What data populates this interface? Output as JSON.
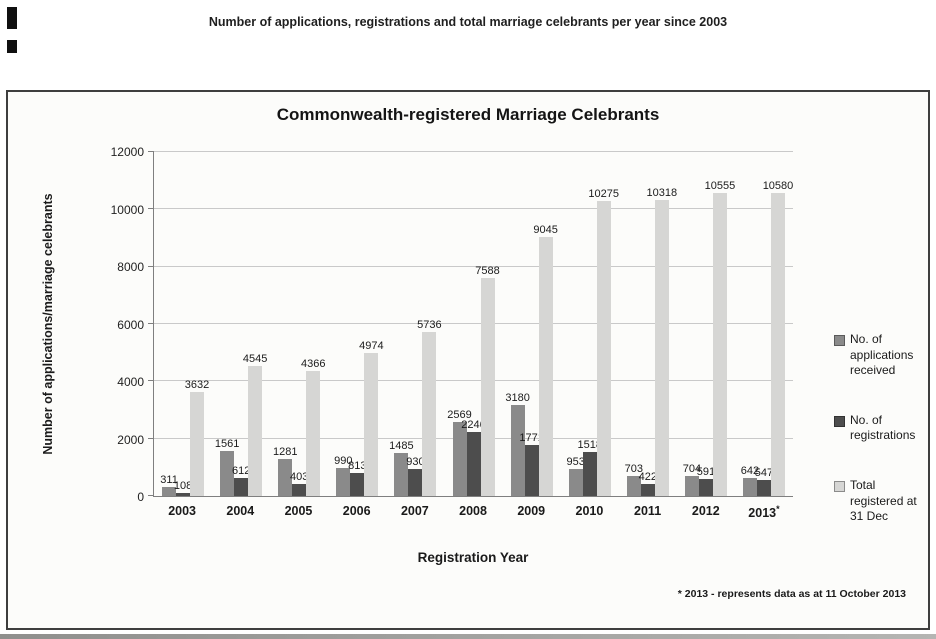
{
  "page_header": "Number of applications, registrations and total marriage celebrants per year since 2003",
  "chart_data": {
    "type": "bar",
    "title": "Commonwealth-registered Marriage Celebrants",
    "xlabel": "Registration Year",
    "ylabel": "Number of applications/marriage celebrants",
    "footnote": "* 2013 - represents data as at 11 October 2013",
    "ylim": [
      0,
      12000
    ],
    "ytick_step": 2000,
    "grid": true,
    "legend_position": "right",
    "categories": [
      "2003",
      "2004",
      "2005",
      "2006",
      "2007",
      "2008",
      "2009",
      "2010",
      "2011",
      "2012",
      "2013*"
    ],
    "series": [
      {
        "name": "No. of applications received",
        "color": "#8a8a8a",
        "values": [
          311,
          1561,
          1281,
          990,
          1485,
          2569,
          3180,
          953,
          703,
          704,
          642
        ]
      },
      {
        "name": "No. of registrations",
        "color": "#4d4d4d",
        "values": [
          108,
          612,
          403,
          813,
          930,
          2246,
          1771,
          1518,
          422,
          591,
          547
        ]
      },
      {
        "name": "Total registered at 31 Dec",
        "color": "#d6d6d4",
        "values": [
          3632,
          4545,
          4366,
          4974,
          5736,
          7588,
          9045,
          10275,
          10318,
          10555,
          10580
        ]
      }
    ]
  }
}
